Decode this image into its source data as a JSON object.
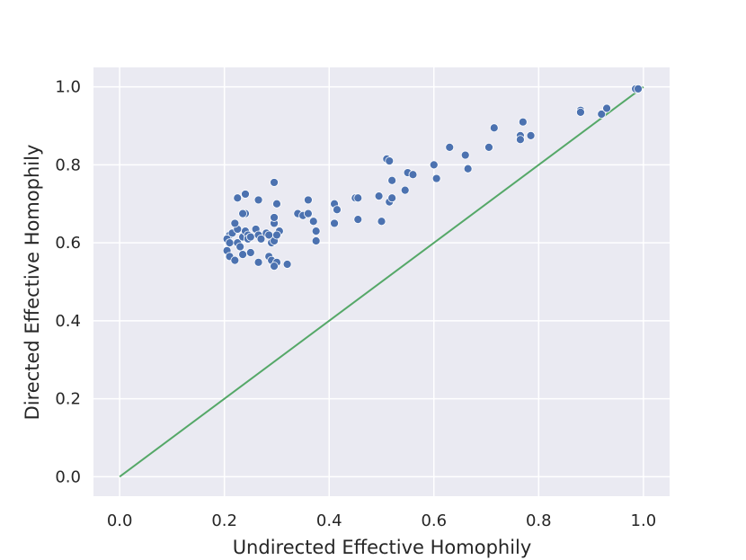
{
  "chart_data": {
    "type": "scatter",
    "title": "",
    "xlabel": "Undirected Effective Homophily",
    "ylabel": "Directed Effective Homophily",
    "xlim": [
      -0.05,
      1.05
    ],
    "ylim": [
      -0.05,
      1.05
    ],
    "xticks": [
      0.0,
      0.2,
      0.4,
      0.6,
      0.8,
      1.0
    ],
    "yticks": [
      0.0,
      0.2,
      0.4,
      0.6,
      0.8,
      1.0
    ],
    "xtick_labels": [
      "0.0",
      "0.2",
      "0.4",
      "0.6",
      "0.8",
      "1.0"
    ],
    "ytick_labels": [
      "0.0",
      "0.2",
      "0.4",
      "0.6",
      "0.8",
      "1.0"
    ],
    "grid": true,
    "background_color": "#eaeaf2",
    "point_color": "#4c72b0",
    "line_color": "#55a868",
    "reference_line": {
      "x": [
        0.0,
        1.0
      ],
      "y": [
        0.0,
        1.0
      ]
    },
    "points": [
      [
        0.21,
        0.62
      ],
      [
        0.205,
        0.61
      ],
      [
        0.21,
        0.6
      ],
      [
        0.205,
        0.58
      ],
      [
        0.21,
        0.565
      ],
      [
        0.22,
        0.555
      ],
      [
        0.215,
        0.625
      ],
      [
        0.225,
        0.635
      ],
      [
        0.22,
        0.65
      ],
      [
        0.225,
        0.6
      ],
      [
        0.23,
        0.59
      ],
      [
        0.235,
        0.615
      ],
      [
        0.24,
        0.63
      ],
      [
        0.24,
        0.675
      ],
      [
        0.235,
        0.675
      ],
      [
        0.245,
        0.62
      ],
      [
        0.245,
        0.61
      ],
      [
        0.25,
        0.575
      ],
      [
        0.235,
        0.57
      ],
      [
        0.24,
        0.725
      ],
      [
        0.225,
        0.715
      ],
      [
        0.25,
        0.615
      ],
      [
        0.26,
        0.635
      ],
      [
        0.265,
        0.62
      ],
      [
        0.27,
        0.61
      ],
      [
        0.265,
        0.55
      ],
      [
        0.265,
        0.71
      ],
      [
        0.28,
        0.625
      ],
      [
        0.285,
        0.62
      ],
      [
        0.29,
        0.6
      ],
      [
        0.285,
        0.565
      ],
      [
        0.29,
        0.555
      ],
      [
        0.3,
        0.55
      ],
      [
        0.295,
        0.54
      ],
      [
        0.295,
        0.605
      ],
      [
        0.295,
        0.65
      ],
      [
        0.295,
        0.665
      ],
      [
        0.3,
        0.7
      ],
      [
        0.295,
        0.755
      ],
      [
        0.305,
        0.63
      ],
      [
        0.3,
        0.62
      ],
      [
        0.32,
        0.545
      ],
      [
        0.34,
        0.675
      ],
      [
        0.35,
        0.67
      ],
      [
        0.36,
        0.675
      ],
      [
        0.36,
        0.71
      ],
      [
        0.37,
        0.655
      ],
      [
        0.375,
        0.63
      ],
      [
        0.375,
        0.605
      ],
      [
        0.41,
        0.7
      ],
      [
        0.415,
        0.685
      ],
      [
        0.41,
        0.65
      ],
      [
        0.45,
        0.715
      ],
      [
        0.455,
        0.715
      ],
      [
        0.455,
        0.66
      ],
      [
        0.495,
        0.72
      ],
      [
        0.5,
        0.655
      ],
      [
        0.51,
        0.815
      ],
      [
        0.515,
        0.81
      ],
      [
        0.515,
        0.705
      ],
      [
        0.52,
        0.715
      ],
      [
        0.52,
        0.76
      ],
      [
        0.545,
        0.735
      ],
      [
        0.55,
        0.78
      ],
      [
        0.56,
        0.775
      ],
      [
        0.6,
        0.8
      ],
      [
        0.605,
        0.765
      ],
      [
        0.63,
        0.845
      ],
      [
        0.66,
        0.825
      ],
      [
        0.665,
        0.79
      ],
      [
        0.705,
        0.845
      ],
      [
        0.715,
        0.895
      ],
      [
        0.765,
        0.875
      ],
      [
        0.765,
        0.865
      ],
      [
        0.77,
        0.91
      ],
      [
        0.785,
        0.875
      ],
      [
        0.88,
        0.94
      ],
      [
        0.88,
        0.935
      ],
      [
        0.92,
        0.93
      ],
      [
        0.93,
        0.945
      ],
      [
        0.985,
        0.995
      ],
      [
        0.99,
        0.995
      ]
    ]
  }
}
